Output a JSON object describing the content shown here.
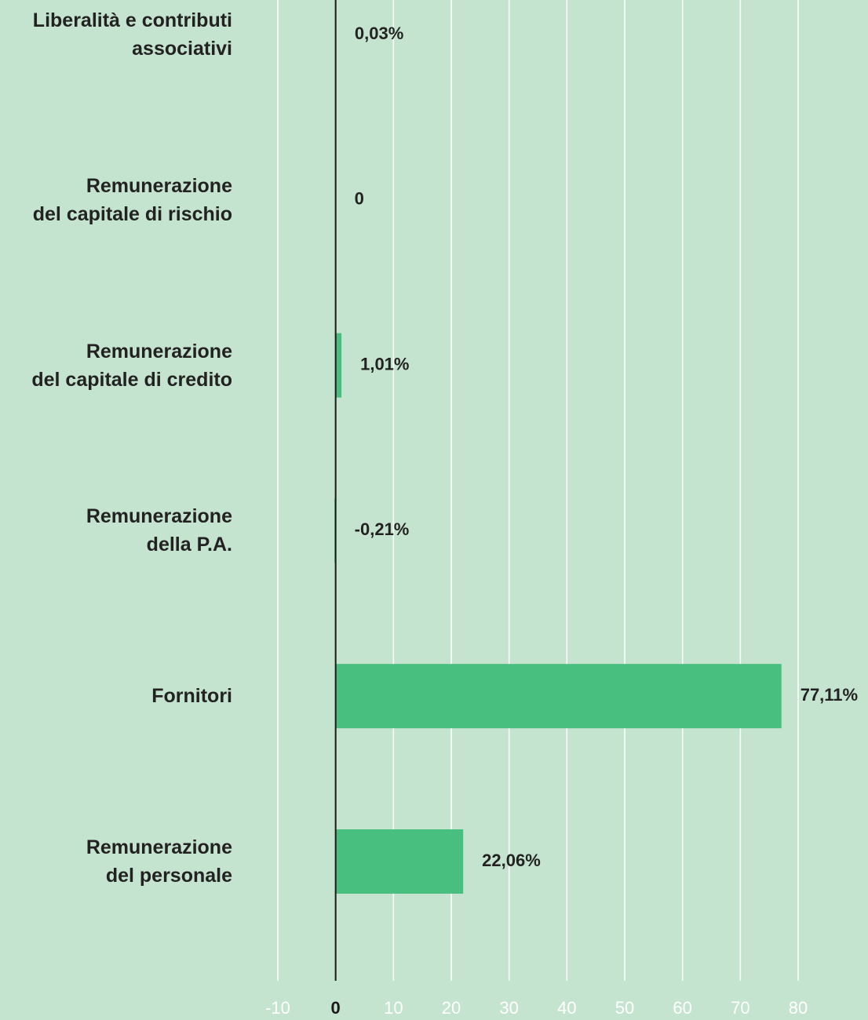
{
  "chart_data": {
    "type": "barh",
    "categories": [
      "Liberalità e contributi\nassociativi",
      "Remunerazione\ndel capitale di rischio",
      "Remunerazione\ndel capitale di credito",
      "Remunerazione\ndella P.A.",
      "Fornitori",
      "Remunerazione\ndel personale"
    ],
    "values": [
      0.03,
      0,
      1.01,
      -0.21,
      77.11,
      22.06
    ],
    "value_labels": [
      "0,03%",
      "0",
      "1,01%",
      "-0,21%",
      "77,11%",
      "22,06%"
    ],
    "color": "#48be7f",
    "xlim": [
      -10,
      80
    ],
    "xticks": [
      -10,
      0,
      10,
      20,
      30,
      40,
      50,
      60,
      70,
      80
    ],
    "grid": true
  }
}
